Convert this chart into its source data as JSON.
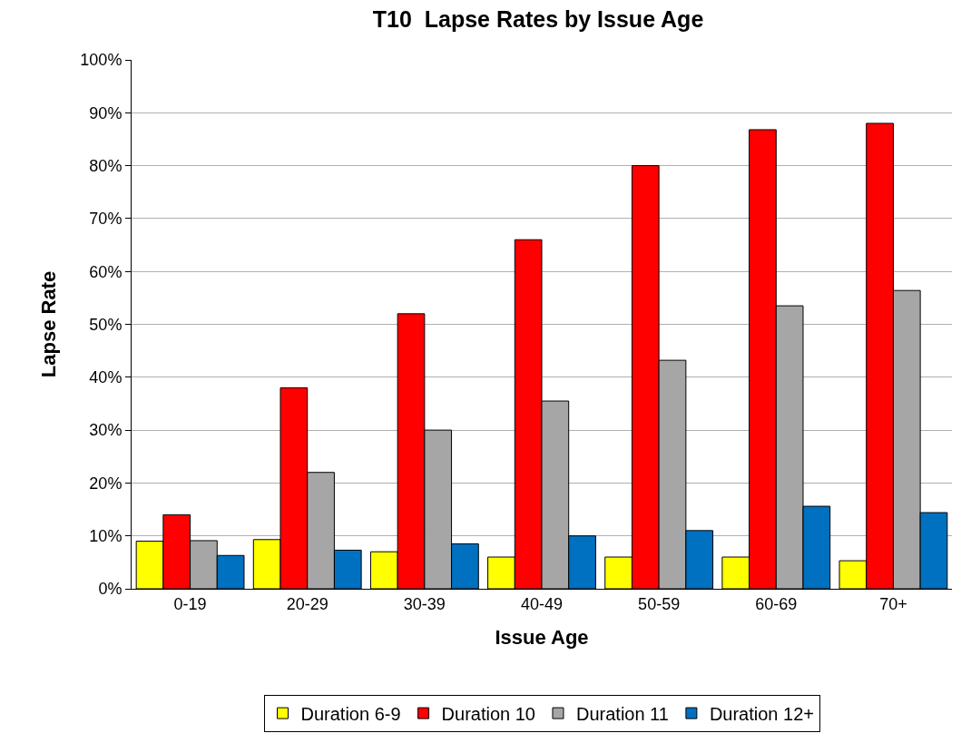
{
  "chart_data": {
    "type": "bar",
    "title": "T10  Lapse Rates by Issue Age",
    "xlabel": "Issue Age",
    "ylabel": "Lapse Rate",
    "categories": [
      "0-19",
      "20-29",
      "30-39",
      "40-49",
      "50-59",
      "60-69",
      "70+"
    ],
    "series": [
      {
        "name": "Duration 6-9",
        "color": "#ffff00",
        "values": [
          9,
          9.3,
          7,
          6,
          6,
          6,
          5.3
        ]
      },
      {
        "name": "Duration 10",
        "color": "#ff0000",
        "values": [
          14,
          38,
          52,
          66,
          80,
          86.8,
          88
        ]
      },
      {
        "name": "Duration 11",
        "color": "#a6a6a6",
        "values": [
          9.1,
          22,
          30,
          35.5,
          43.2,
          53.5,
          56.4
        ]
      },
      {
        "name": "Duration 12+",
        "color": "#0070c0",
        "values": [
          6.3,
          7.3,
          8.5,
          10,
          11,
          15.6,
          14.4
        ]
      }
    ],
    "ylim": [
      0,
      100
    ],
    "yticks": [
      {
        "value": 0,
        "label": "0%"
      },
      {
        "value": 10,
        "label": "10%"
      },
      {
        "value": 20,
        "label": "20%"
      },
      {
        "value": 30,
        "label": "30%"
      },
      {
        "value": 40,
        "label": "40%"
      },
      {
        "value": 50,
        "label": "50%"
      },
      {
        "value": 60,
        "label": "60%"
      },
      {
        "value": 70,
        "label": "70%"
      },
      {
        "value": 80,
        "label": "80%"
      },
      {
        "value": 90,
        "label": "90%"
      },
      {
        "value": 100,
        "label": "100%"
      }
    ],
    "grid": "y",
    "legend": "bottom"
  }
}
